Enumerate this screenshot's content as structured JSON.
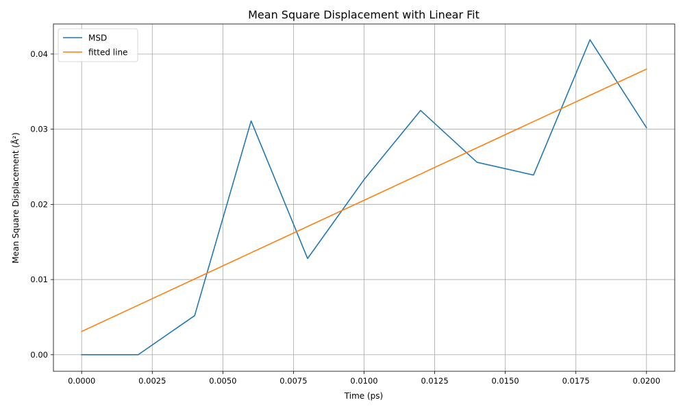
{
  "chart_data": {
    "type": "line",
    "title": "Mean Square Displacement with Linear Fit",
    "xlabel": "Time (ps)",
    "ylabel": "Mean Square Displacement (Å²)",
    "xlim": [
      -0.001,
      0.021
    ],
    "ylim": [
      -0.0022,
      0.044
    ],
    "grid": true,
    "legend_position": "top-left",
    "x_ticks": [
      0.0,
      0.0025,
      0.005,
      0.0075,
      0.01,
      0.0125,
      0.015,
      0.0175,
      0.02
    ],
    "x_tick_labels": [
      "0.0000",
      "0.0025",
      "0.0050",
      "0.0075",
      "0.0100",
      "0.0125",
      "0.0150",
      "0.0175",
      "0.0200"
    ],
    "y_ticks": [
      0.0,
      0.01,
      0.02,
      0.03,
      0.04
    ],
    "y_tick_labels": [
      "0.00",
      "0.01",
      "0.02",
      "0.03",
      "0.04"
    ],
    "x": [
      0.0,
      0.002,
      0.004,
      0.006,
      0.008,
      0.01,
      0.012,
      0.014,
      0.016,
      0.018,
      0.02
    ],
    "series": [
      {
        "name": "MSD",
        "color": "#1f77b4",
        "values": [
          0.0,
          0.0,
          0.0052,
          0.0311,
          0.0128,
          0.0233,
          0.0325,
          0.0256,
          0.0239,
          0.0419,
          0.0302
        ]
      },
      {
        "name": "fitted line",
        "color": "#ff7f0e",
        "values": [
          0.0031,
          0.00659,
          0.01008,
          0.01357,
          0.01706,
          0.02055,
          0.02404,
          0.02753,
          0.03102,
          0.03451,
          0.038
        ]
      }
    ]
  }
}
